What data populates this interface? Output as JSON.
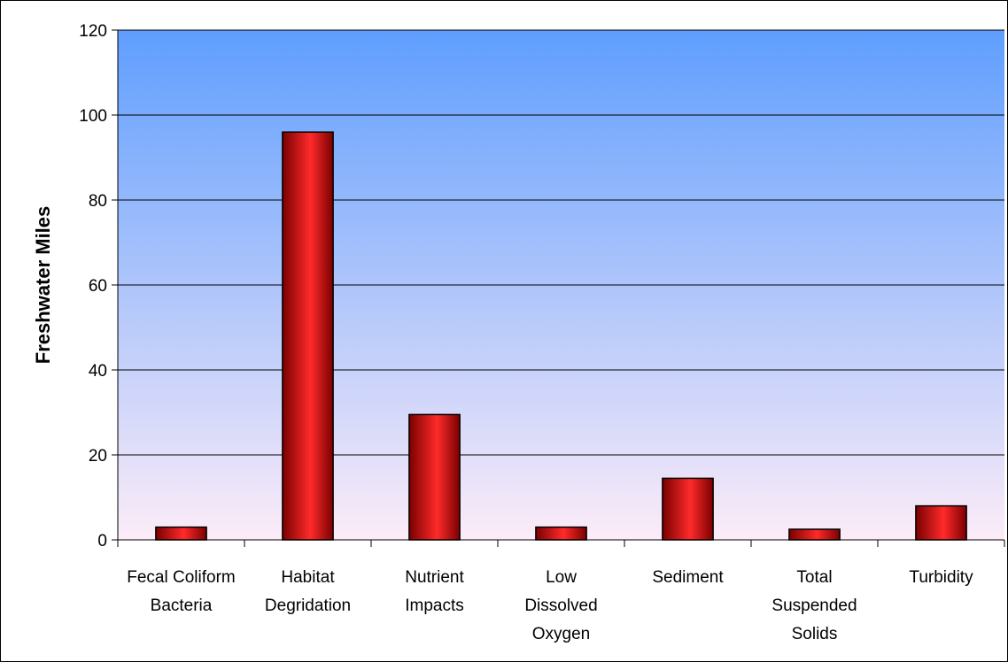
{
  "chart_data": {
    "type": "bar",
    "title": "",
    "xlabel": "",
    "ylabel": "Freshwater Miles",
    "ylim": [
      0,
      120
    ],
    "yticks": [
      0,
      20,
      40,
      60,
      80,
      100,
      120
    ],
    "grid": true,
    "categories": [
      [
        "Fecal Coliform",
        "Bacteria"
      ],
      [
        "Habitat",
        "Degridation"
      ],
      [
        "Nutrient",
        "Impacts"
      ],
      [
        "Low",
        "Dissolved",
        "Oxygen"
      ],
      [
        "Sediment"
      ],
      [
        "Total",
        "Suspended",
        "Solids"
      ],
      [
        "Turbidity"
      ]
    ],
    "values": [
      3,
      96,
      29.5,
      3,
      14.5,
      2.5,
      8
    ],
    "colors": {
      "bar_light": "#ff2a2a",
      "bar_dark": "#7a0000",
      "plot_top": "#5f9efe",
      "plot_bottom": "#fcecf8"
    }
  }
}
